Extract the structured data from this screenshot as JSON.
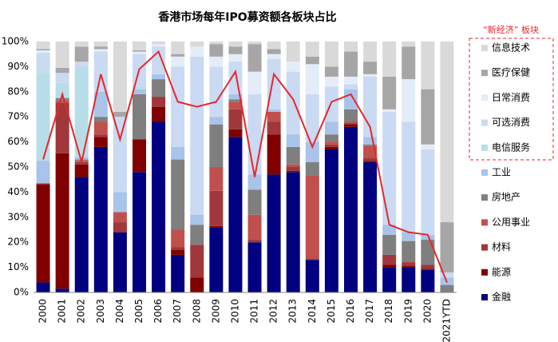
{
  "chart_data": {
    "type": "stacked_bar",
    "title": "香港市场每年IPO募资额各板块占比",
    "categories": [
      "2000",
      "2001",
      "2002",
      "2003",
      "2004",
      "2005",
      "2006",
      "2007",
      "2008",
      "2009",
      "2010",
      "2011",
      "2012",
      "2013",
      "2014",
      "2015",
      "2016",
      "2017",
      "2018",
      "2019",
      "2020",
      "2021YTD"
    ],
    "series": [
      {
        "name": "金融",
        "color": "#000080",
        "values": [
          4,
          1.5,
          46,
          58,
          24,
          48,
          68,
          15,
          0,
          26,
          62,
          20,
          47,
          48,
          13,
          57,
          66,
          52,
          10,
          10,
          9,
          0
        ]
      },
      {
        "name": "能源",
        "color": "#800000",
        "values": [
          39,
          54,
          5,
          4,
          0,
          13,
          6,
          2,
          6,
          0.5,
          3,
          0,
          16,
          0.5,
          0,
          1,
          1,
          0.5,
          1,
          0.5,
          0.5,
          0
        ]
      },
      {
        "name": "材料",
        "color": "#A0373A",
        "values": [
          0.5,
          20,
          1,
          1,
          4,
          0,
          4,
          1,
          13,
          14,
          8,
          1,
          5,
          1.5,
          0.5,
          1,
          0.5,
          1,
          4,
          1.5,
          1.5,
          0
        ]
      },
      {
        "name": "公用事业",
        "color": "#C0504D",
        "values": [
          0,
          1,
          0.5,
          5,
          4,
          0,
          0,
          7,
          0,
          9.5,
          3,
          10,
          4,
          1,
          33,
          1,
          0.5,
          5,
          0,
          0.5,
          0,
          0
        ]
      },
      {
        "name": "房地产",
        "color": "#7F7F7F",
        "values": [
          0,
          1,
          0.5,
          2,
          0,
          18,
          7,
          28,
          8,
          17,
          1,
          10,
          0,
          7,
          5.5,
          3,
          5,
          0.5,
          8,
          8,
          10,
          3
        ]
      },
      {
        "name": "工业",
        "color": "#A9C4EB",
        "values": [
          9,
          0,
          1,
          10,
          8,
          2,
          2,
          5,
          4,
          3,
          2,
          6,
          1,
          5,
          8,
          5,
          8,
          3,
          4,
          3.5,
          2,
          3
        ]
      },
      {
        "name": "电信服务",
        "color": "#B7DEE8",
        "values": [
          35,
          6,
          36,
          0,
          0,
          1,
          0,
          0,
          0,
          0,
          0,
          0,
          0,
          0,
          0,
          0,
          0,
          0,
          0,
          0,
          0,
          0
        ]
      },
      {
        "name": "可选消费",
        "color": "#C9DAF2",
        "values": [
          8,
          4,
          2,
          16,
          30,
          13,
          11,
          32,
          63,
          20,
          13,
          32,
          20,
          25,
          19,
          14,
          2,
          24,
          45,
          44,
          34,
          2
        ]
      },
      {
        "name": "日常消费",
        "color": "#E4ECF7",
        "values": [
          1,
          0,
          0,
          1,
          0,
          1,
          1,
          4,
          4,
          4,
          3,
          9,
          2,
          4,
          12,
          4,
          3,
          1,
          1,
          17,
          2,
          0
        ]
      },
      {
        "name": "医疗保健",
        "color": "#A6A6A6",
        "values": [
          0.5,
          2,
          6,
          1,
          2,
          0.5,
          0,
          1,
          0,
          5,
          3,
          11,
          2,
          0,
          3,
          4,
          10,
          5,
          13,
          13,
          22,
          20
        ]
      },
      {
        "name": "信息技术",
        "color": "#D9D9D9",
        "values": [
          3,
          10.5,
          2,
          2,
          28,
          3.5,
          1,
          5,
          2,
          1,
          2,
          1,
          3,
          8,
          6,
          10,
          4,
          8,
          14,
          2,
          19,
          72
        ]
      }
    ],
    "line": {
      "color": "#E8262B",
      "values": [
        53,
        79,
        52,
        87,
        61,
        89,
        96,
        76,
        74,
        76,
        88,
        46,
        87,
        77,
        58,
        76,
        79,
        66,
        27,
        24,
        23,
        4
      ]
    },
    "new_economy_label": "“新经济” 板块",
    "ylim": [
      0,
      100
    ],
    "yticks": [
      {
        "value": 0,
        "label": "0%"
      },
      {
        "value": 10,
        "label": "10%"
      },
      {
        "value": 20,
        "label": "20%"
      },
      {
        "value": 30,
        "label": "30%"
      },
      {
        "value": 40,
        "label": "40%"
      },
      {
        "value": 50,
        "label": "50%"
      },
      {
        "value": 60,
        "label": "60%"
      },
      {
        "value": 70,
        "label": "70%"
      },
      {
        "value": 80,
        "label": "80%"
      },
      {
        "value": 90,
        "label": "90%"
      },
      {
        "value": 100,
        "label": "100%"
      }
    ],
    "grid": false
  }
}
